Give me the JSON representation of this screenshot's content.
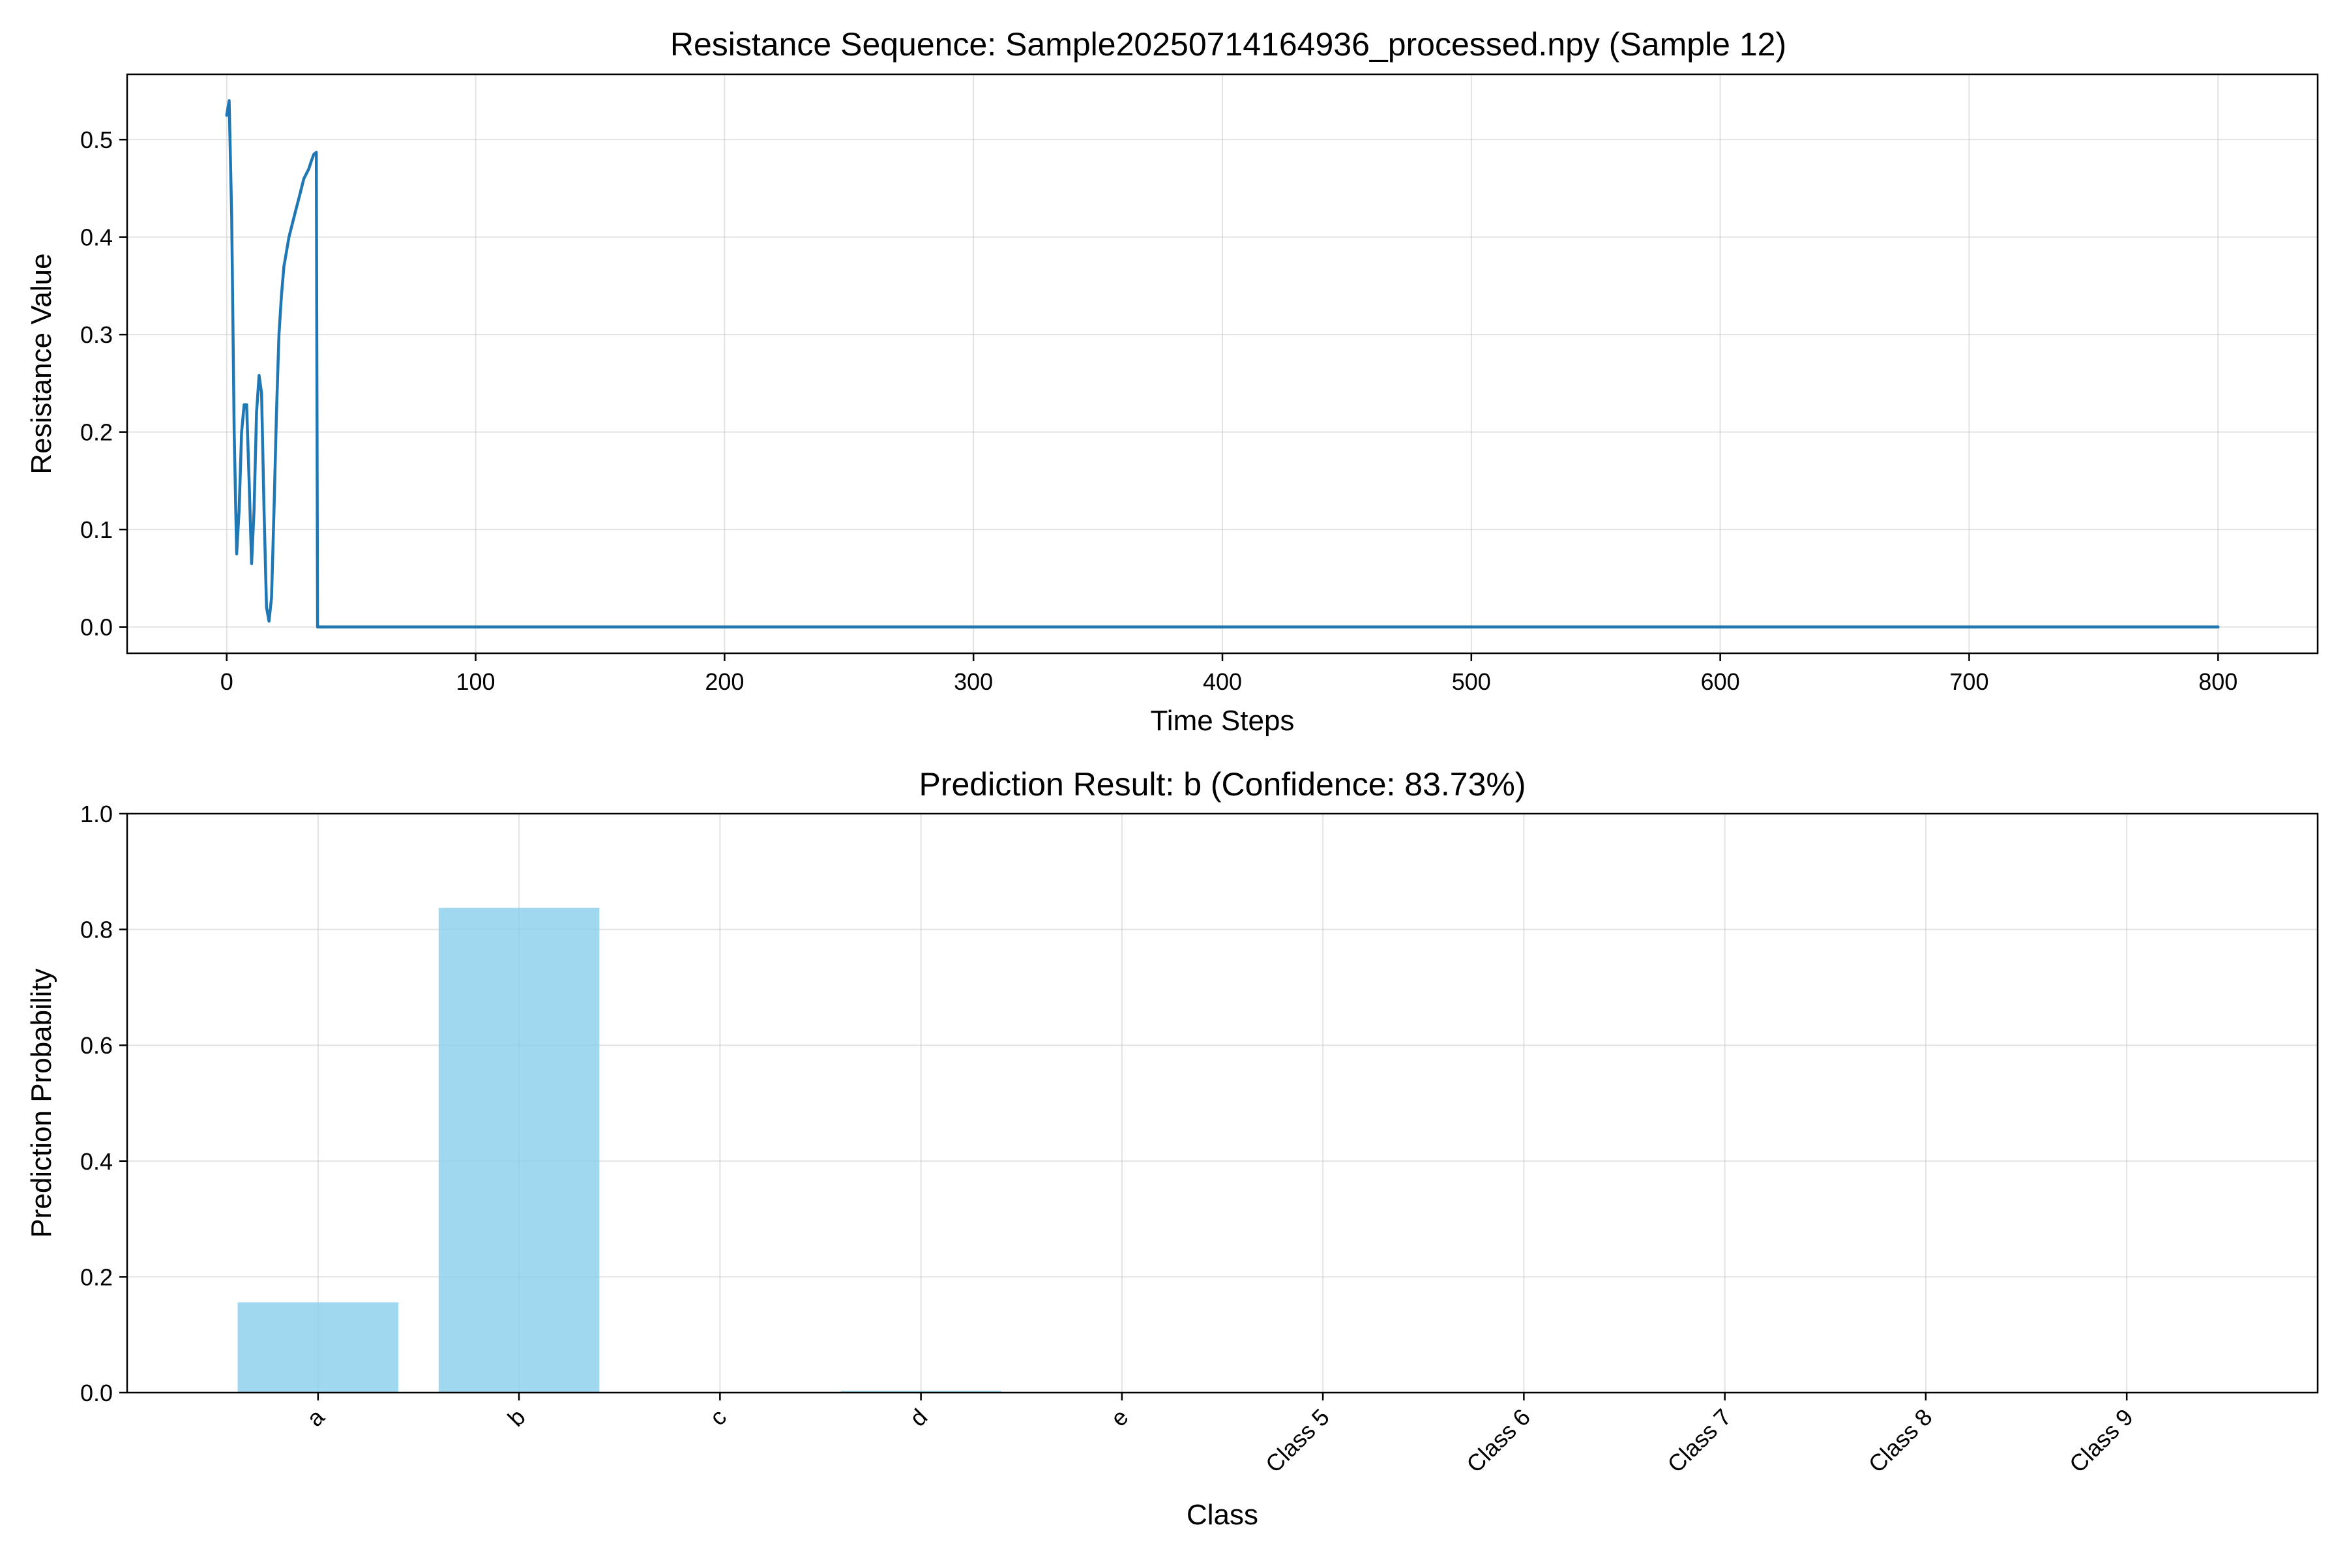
{
  "chart_data": [
    {
      "type": "line",
      "title": "Resistance Sequence: Sample20250714164936_processed.npy (Sample 12)",
      "xlabel": "Time Steps",
      "ylabel": "Resistance Value",
      "xlim": [
        -40,
        840
      ],
      "ylim": [
        -0.027,
        0.567
      ],
      "xticks": [
        0,
        100,
        200,
        300,
        400,
        500,
        600,
        700,
        800
      ],
      "xtick_labels": [
        "0",
        "100",
        "200",
        "300",
        "400",
        "500",
        "600",
        "700",
        "800"
      ],
      "yticks": [
        0.0,
        0.1,
        0.2,
        0.3,
        0.4,
        0.5
      ],
      "ytick_labels": [
        "0.0",
        "0.1",
        "0.2",
        "0.3",
        "0.4",
        "0.5"
      ],
      "grid": true,
      "line_color": "#1f77b4",
      "series": [
        {
          "x": [
            0,
            1,
            2,
            3,
            4,
            5,
            6,
            7,
            8,
            9,
            10,
            11,
            12,
            13,
            14,
            15,
            16,
            17,
            18,
            19,
            20,
            21,
            22,
            23,
            24,
            25,
            26,
            27,
            28,
            29,
            30,
            31,
            32,
            33,
            34,
            35,
            36,
            36.5,
            37,
            800
          ],
          "y": [
            0.525,
            0.54,
            0.42,
            0.2,
            0.075,
            0.12,
            0.2,
            0.228,
            0.228,
            0.15,
            0.065,
            0.12,
            0.22,
            0.258,
            0.24,
            0.12,
            0.02,
            0.006,
            0.03,
            0.12,
            0.22,
            0.3,
            0.34,
            0.37,
            0.385,
            0.4,
            0.41,
            0.42,
            0.43,
            0.44,
            0.45,
            0.46,
            0.465,
            0.47,
            0.478,
            0.485,
            0.487,
            0.0,
            0.0,
            0.0
          ]
        }
      ]
    },
    {
      "type": "bar",
      "title": "Prediction Result: b (Confidence: 83.73%)",
      "xlabel": "Class",
      "ylabel": "Prediction Probability",
      "ylim": [
        0,
        1.0
      ],
      "yticks": [
        0.0,
        0.2,
        0.4,
        0.6,
        0.8,
        1.0
      ],
      "ytick_labels": [
        "0.0",
        "0.2",
        "0.4",
        "0.6",
        "0.8",
        "1.0"
      ],
      "grid": true,
      "bar_color": "#87ceeb",
      "categories": [
        "a",
        "b",
        "c",
        "d",
        "e",
        "Class 5",
        "Class 6",
        "Class 7",
        "Class 8",
        "Class 9"
      ],
      "values": [
        0.156,
        0.8373,
        0.0,
        0.003,
        0.0,
        0.0,
        0.0,
        0.0,
        0.0,
        0.0
      ]
    }
  ]
}
